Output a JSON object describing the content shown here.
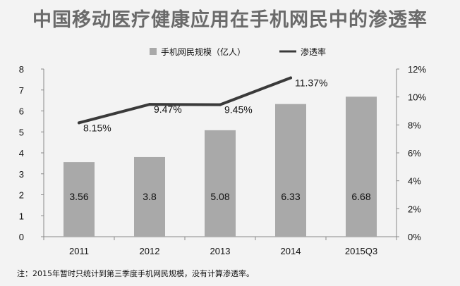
{
  "title": "中国移动医疗健康应用在手机网民中的渗透率",
  "note": "注：2015年暂时只统计到第三季度手机网民规模，没有计算渗透率。",
  "colors": {
    "bar": "#a9a9a9",
    "line": "#3a3a3a",
    "axis": "#888888"
  },
  "chart_data": {
    "type": "bar",
    "categories": [
      "2011",
      "2012",
      "2013",
      "2014",
      "2015Q3"
    ],
    "series": [
      {
        "name": "手机网民规模（亿人）",
        "kind": "bar",
        "axis": "left",
        "values": [
          3.56,
          3.8,
          5.08,
          6.33,
          6.68
        ],
        "labels": [
          "3.56",
          "3.8",
          "5.08",
          "6.33",
          "6.68"
        ]
      },
      {
        "name": "渗透率",
        "kind": "line",
        "axis": "right",
        "values": [
          8.15,
          9.47,
          9.45,
          11.37,
          null
        ],
        "labels": [
          "8.15%",
          "9.47%",
          "9.45%",
          "11.37%",
          ""
        ]
      }
    ],
    "y_left": {
      "range": [
        0,
        8
      ],
      "ticks": [
        "0",
        "1",
        "2",
        "3",
        "4",
        "5",
        "6",
        "7",
        "8"
      ]
    },
    "y_right": {
      "range": [
        0,
        12
      ],
      "ticks": [
        "0%",
        "2%",
        "4%",
        "6%",
        "8%",
        "10%",
        "12%"
      ]
    },
    "grid": false,
    "legend_position": "top-center"
  }
}
